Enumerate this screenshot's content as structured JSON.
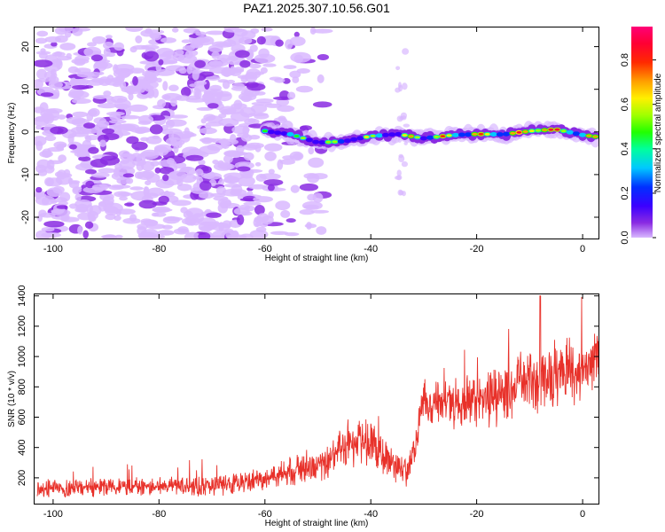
{
  "title": "PAZ1.2025.307.10.56.G01",
  "chart_data": [
    {
      "type": "heatmap",
      "title": "PAZ1.2025.307.10.56.G01",
      "xlabel": "Height of straight line (km)",
      "ylabel": "Frequency (Hz)",
      "xlim": [
        -103.5,
        3
      ],
      "ylim": [
        -25,
        24.5
      ],
      "xticks": [
        -100,
        -80,
        -60,
        -40,
        -20,
        0
      ],
      "yticks": [
        20,
        10,
        0,
        -10,
        -20
      ],
      "grid": false,
      "colorbar": {
        "label": "Normalized spectral amplitude",
        "range": [
          0,
          0.95
        ],
        "ticks": [
          0.0,
          0.2,
          0.4,
          0.6,
          0.8
        ],
        "colormap": "rainbow (violet to red to pink)"
      },
      "features": [
        {
          "name": "noise-region",
          "x_range": [
            -103,
            -49
          ],
          "y_range": [
            -25,
            24.5
          ],
          "amplitude": "low 0.1-0.35"
        },
        {
          "name": "sparse-noise-strip",
          "x_range": [
            -35,
            -33
          ],
          "y_range": [
            -17,
            19
          ],
          "amplitude": "low"
        },
        {
          "name": "signal-track",
          "points": [
            [
              -60,
              0.2
            ],
            [
              -55,
              -0.6
            ],
            [
              -50,
              -2.5
            ],
            [
              -45,
              -2.2
            ],
            [
              -40,
              -1.0
            ],
            [
              -35,
              -0.5
            ],
            [
              -30,
              -1.5
            ],
            [
              -25,
              -0.8
            ],
            [
              -20,
              -0.5
            ],
            [
              -15,
              -0.6
            ],
            [
              -10,
              0.2
            ],
            [
              -5,
              0.6
            ],
            [
              0,
              -0.7
            ],
            [
              3,
              -1.2
            ]
          ],
          "amplitude": "0.45-0.9, peak near -8 km"
        }
      ]
    },
    {
      "type": "line",
      "xlabel": "Height of straight line (km)",
      "ylabel": "SNR (10 * v/v)",
      "xlim": [
        -103.5,
        3
      ],
      "ylim": [
        30,
        1410
      ],
      "xticks": [
        -100,
        -80,
        -60,
        -40,
        -20,
        0
      ],
      "yticks": [
        200,
        400,
        600,
        800,
        1000,
        1200,
        1400
      ],
      "grid": false,
      "series": [
        {
          "name": "SNR",
          "color": "#e8312a",
          "envelope": {
            "x": [
              -103,
              -90,
              -80,
              -70,
              -60,
              -55,
              -50,
              -47,
              -45,
              -40,
              -37,
              -35,
              -33,
              -30,
              -25,
              -20,
              -15,
              -10,
              -5,
              0,
              3
            ],
            "mean": [
              130,
              135,
              140,
              145,
              190,
              240,
              300,
              330,
              420,
              430,
              330,
              260,
              230,
              700,
              690,
              700,
              760,
              830,
              900,
              900,
              1020
            ],
            "spread": [
              50,
              55,
              55,
              60,
              70,
              85,
              100,
              110,
              140,
              150,
              120,
              80,
              80,
              140,
              140,
              150,
              170,
              180,
              200,
              180,
              160
            ],
            "max": 1400,
            "max_at": -8
          }
        }
      ]
    }
  ]
}
